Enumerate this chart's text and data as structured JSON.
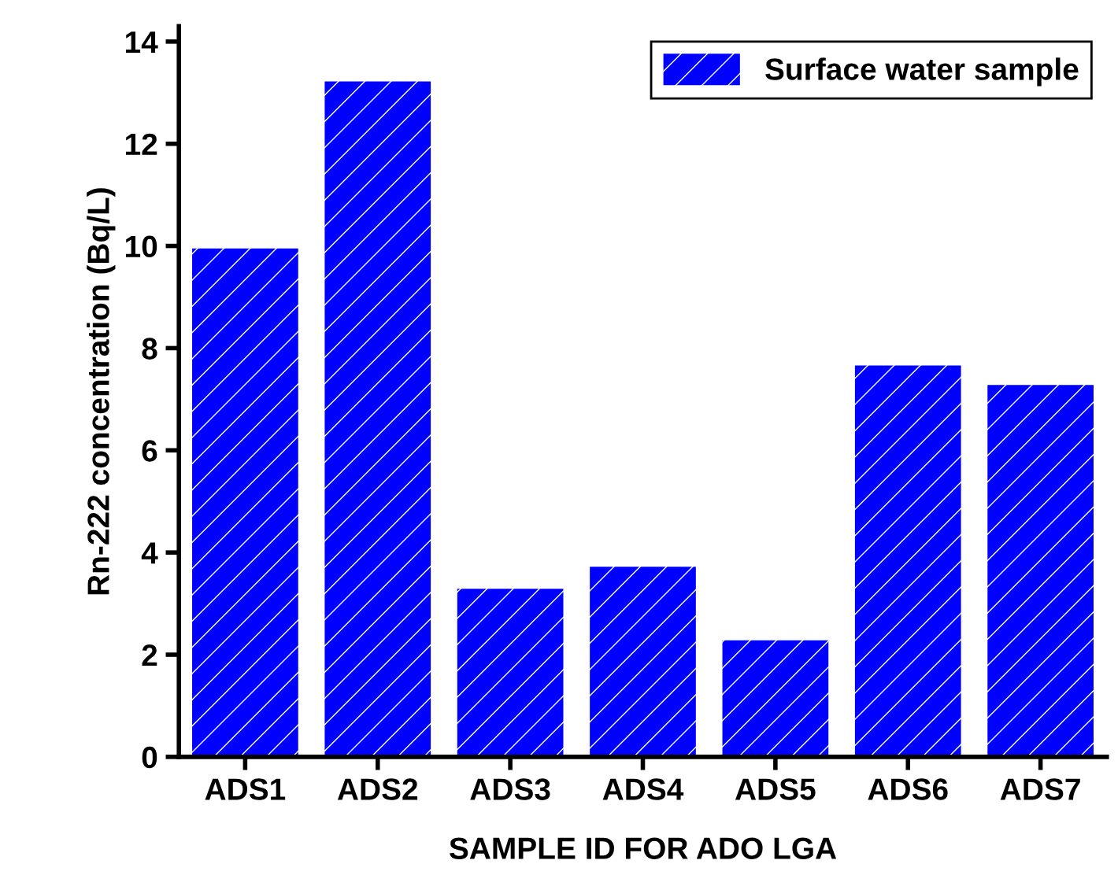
{
  "chart_data": {
    "type": "bar",
    "xlabel": "SAMPLE ID FOR ADO LGA",
    "ylabel": "Rn-222 concentration (Bq/L)",
    "categories": [
      "ADS1",
      "ADS2",
      "ADS3",
      "ADS4",
      "ADS5",
      "ADS6",
      "ADS7"
    ],
    "series": [
      {
        "name": "Surface water sample",
        "color": "#0000ff",
        "values": [
          9.95,
          13.22,
          3.29,
          3.72,
          2.28,
          7.66,
          7.28
        ]
      }
    ],
    "ylim": [
      0,
      14.3
    ],
    "yticks": [
      0,
      2,
      4,
      6,
      8,
      10,
      12,
      14
    ],
    "grid": false,
    "legend": "top right"
  }
}
